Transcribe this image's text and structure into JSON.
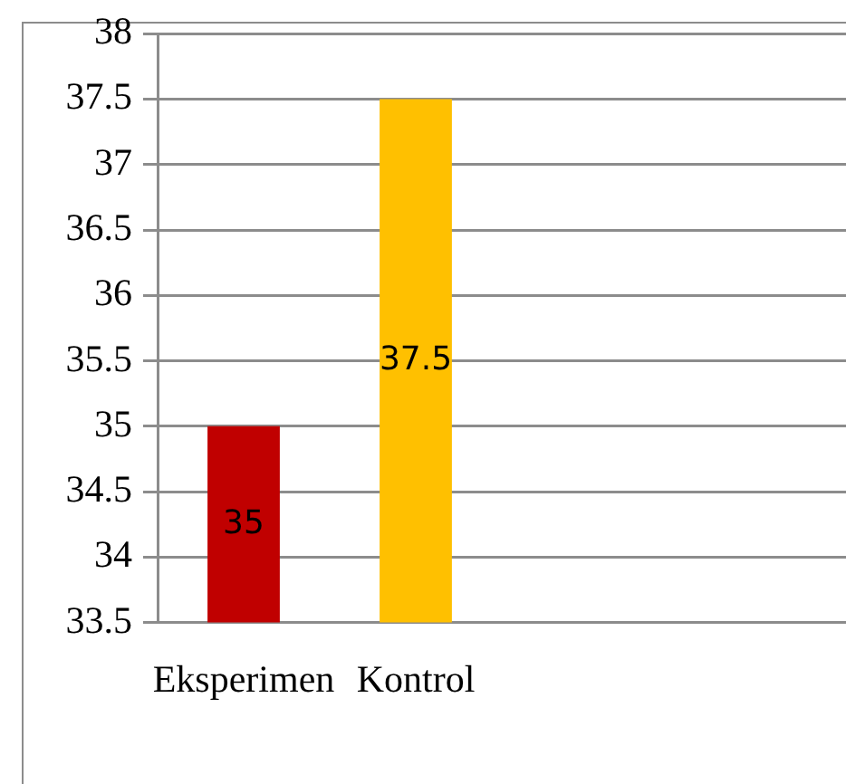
{
  "chart_data": {
    "type": "bar",
    "categories": [
      "Eksperimen",
      "Kontrol",
      null,
      null
    ],
    "values": [
      35,
      37.5,
      null,
      null
    ],
    "colors": [
      "#c00000",
      "#ffc000",
      "#c00000",
      "#c00000"
    ],
    "ylim": [
      33.5,
      38
    ],
    "yticks": [
      33.5,
      34,
      34.5,
      35,
      35.5,
      36,
      36.5,
      37,
      37.5,
      38
    ],
    "grid": "y",
    "data_labels": true
  }
}
